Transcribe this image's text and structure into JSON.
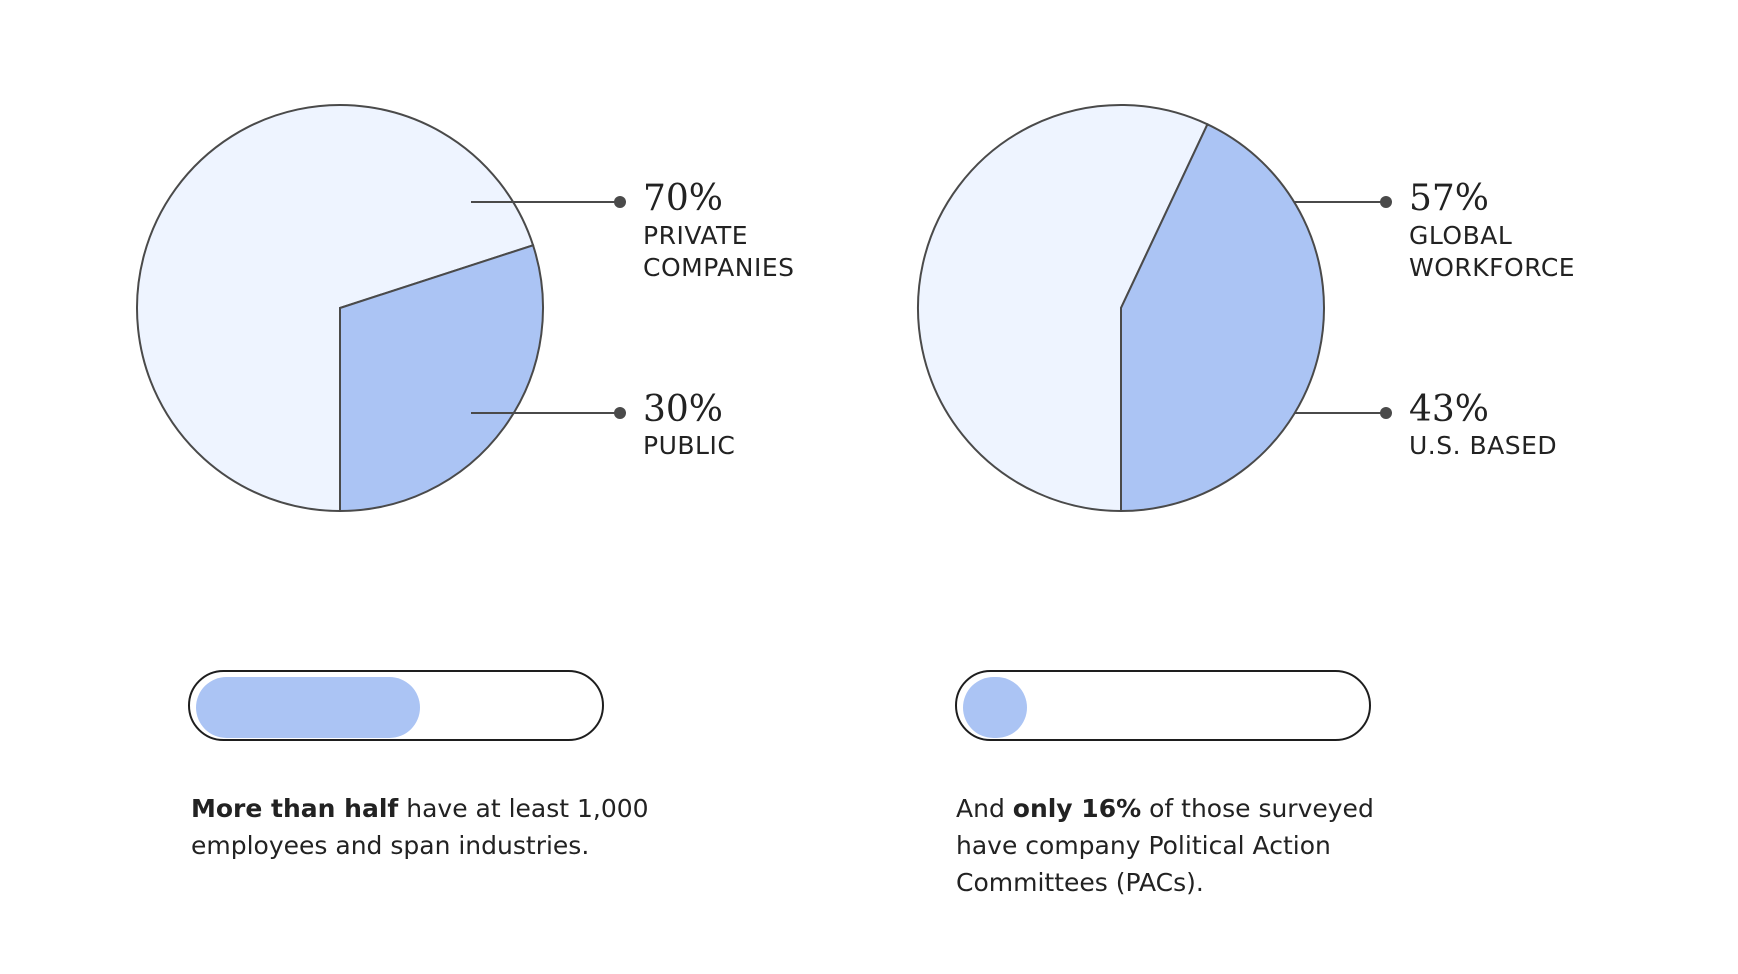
{
  "colors": {
    "light_slice": "#eef4ff",
    "dark_slice": "#abc4f4",
    "stroke": "#4a4a4a",
    "bar_fill": "#abc4f4",
    "bar_border": "#1e1e1e"
  },
  "chart_data": [
    {
      "type": "pie",
      "slices": [
        {
          "pct_label": "70%",
          "label": "PRIVATE\nCOMPANIES",
          "value": 70,
          "color": "#eef4ff"
        },
        {
          "pct_label": "30%",
          "label": "PUBLIC",
          "value": 30,
          "color": "#abc4f4"
        }
      ]
    },
    {
      "type": "pie",
      "slices": [
        {
          "pct_label": "57%",
          "label": "GLOBAL\nWORKFORCE",
          "value": 57,
          "color": "#eef4ff"
        },
        {
          "pct_label": "43%",
          "label": "U.S. BASED",
          "value": 43,
          "color": "#abc4f4"
        }
      ]
    }
  ],
  "progress": [
    {
      "fill_fraction": 0.56,
      "caption": {
        "bold": "More than half",
        "rest": " have at least 1,000 employees and span industries.",
        "prefix": ""
      }
    },
    {
      "fill_fraction": 0.16,
      "caption": {
        "prefix": "And ",
        "bold": "only 16%",
        "rest": " of those surveyed have company Political Action Committees (PACs)."
      }
    }
  ]
}
